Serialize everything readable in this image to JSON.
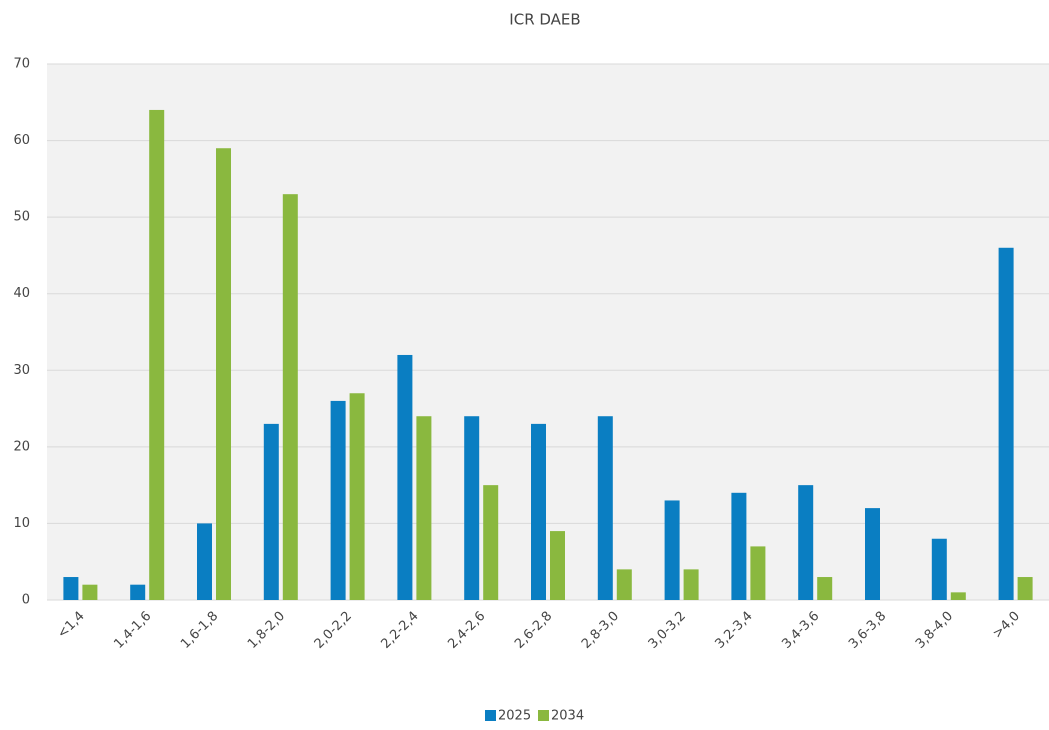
{
  "chart_data": {
    "type": "bar",
    "title": "ICR DAEB",
    "categories": [
      "<1,4",
      "1,4-1,6",
      "1,6-1,8",
      "1,8-2,0",
      "2,0-2,2",
      "2,2-2,4",
      "2,4-2,6",
      "2,6-2,8",
      "2,8-3,0",
      "3,0-3,2",
      "3,2-3,4",
      "3,4-3,6",
      "3,6-3,8",
      "3,8-4,0",
      ">4,0"
    ],
    "series": [
      {
        "name": "2025",
        "color": "#0a7ec2",
        "values": [
          3,
          2,
          10,
          23,
          26,
          32,
          24,
          23,
          24,
          13,
          14,
          15,
          12,
          8,
          46
        ]
      },
      {
        "name": "2034",
        "color": "#8ab83f",
        "values": [
          2,
          64,
          59,
          53,
          27,
          24,
          15,
          9,
          4,
          4,
          7,
          3,
          0,
          1,
          3
        ]
      }
    ],
    "ylim": [
      0,
      70
    ],
    "yticks": [
      0,
      10,
      20,
      30,
      40,
      50,
      60,
      70
    ],
    "grid": true,
    "legend": "bottom"
  }
}
